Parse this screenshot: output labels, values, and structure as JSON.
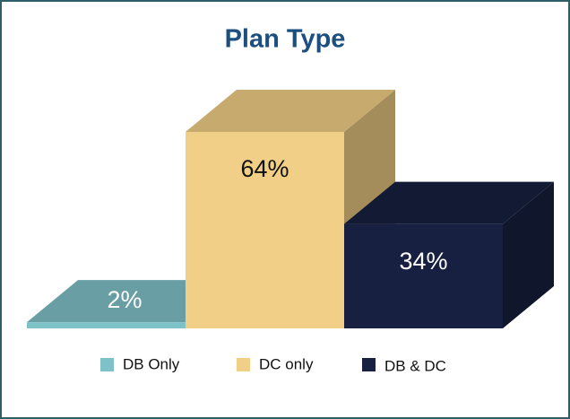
{
  "chart_data": {
    "type": "bar3d",
    "title": "Plan Type",
    "categories": [
      "DB Only",
      "DC only",
      "DB & DC"
    ],
    "values": [
      2,
      64,
      34
    ],
    "value_labels": [
      "2%",
      "64%",
      "34%"
    ],
    "colors": [
      "#7fc1c8",
      "#f2cf86",
      "#172040"
    ],
    "legend": "bottom"
  }
}
